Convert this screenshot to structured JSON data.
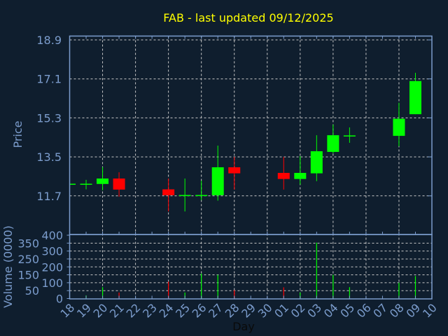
{
  "chart_data": {
    "type": "candlestick",
    "title": "FAB - last updated 09/12/2025",
    "xlabel": "Day",
    "ylabel": "Price",
    "volume_label": "Volume (0000)",
    "x_ticks": [
      "18",
      "19",
      "20",
      "21",
      "22",
      "23",
      "24",
      "25",
      "26",
      "27",
      "28",
      "29",
      "30",
      "01",
      "02",
      "03",
      "04",
      "05",
      "06",
      "07",
      "08",
      "09",
      "10"
    ],
    "y_ticks": [
      "18.9",
      "17.1",
      "15.3",
      "13.5",
      "11.7"
    ],
    "ylim": [
      10.0,
      19.1
    ],
    "volume_ticks": [
      "400",
      "350",
      "300",
      "250",
      "200",
      "150",
      "100",
      "50",
      "0"
    ],
    "volume_ylim": [
      0,
      400
    ],
    "grid": true,
    "colors": {
      "up": "#00ff00",
      "down": "#ff0000",
      "title": "#ffff00",
      "axis": "#7b9ccc",
      "background": "#0f1e2e",
      "grid": "#c8c8c8"
    },
    "candles": [
      {
        "day": "18",
        "open": 12.26,
        "high": 12.26,
        "low": 12.26,
        "close": 12.26,
        "volume": 0
      },
      {
        "day": "19",
        "open": 12.25,
        "high": 12.44,
        "low": 12.0,
        "close": 12.26,
        "volume": 20
      },
      {
        "day": "20",
        "open": 12.25,
        "high": 13.03,
        "low": 11.96,
        "close": 12.5,
        "volume": 72
      },
      {
        "day": "21",
        "open": 12.5,
        "high": 12.79,
        "low": 11.66,
        "close": 11.99,
        "volume": 38
      },
      {
        "day": "24",
        "open": 12.0,
        "high": 12.5,
        "low": 10.98,
        "close": 11.73,
        "volume": 107
      },
      {
        "day": "25",
        "open": 11.73,
        "high": 12.5,
        "low": 10.98,
        "close": 11.74,
        "volume": 38
      },
      {
        "day": "26",
        "open": 11.73,
        "high": 12.4,
        "low": 11.5,
        "close": 11.74,
        "volume": 158
      },
      {
        "day": "27",
        "open": 11.73,
        "high": 14.02,
        "low": 11.48,
        "close": 13.02,
        "volume": 150
      },
      {
        "day": "28",
        "open": 13.02,
        "high": 13.5,
        "low": 11.99,
        "close": 12.74,
        "volume": 53
      },
      {
        "day": "01",
        "open": 12.76,
        "high": 13.5,
        "low": 11.99,
        "close": 12.48,
        "volume": 71
      },
      {
        "day": "02",
        "open": 12.48,
        "high": 13.54,
        "low": 12.22,
        "close": 12.76,
        "volume": 38
      },
      {
        "day": "03",
        "open": 12.74,
        "high": 14.5,
        "low": 12.38,
        "close": 13.76,
        "volume": 353
      },
      {
        "day": "04",
        "open": 13.73,
        "high": 14.99,
        "low": 13.66,
        "close": 14.5,
        "volume": 150
      },
      {
        "day": "05",
        "open": 14.48,
        "high": 14.86,
        "low": 14.15,
        "close": 14.49,
        "volume": 72
      },
      {
        "day": "08",
        "open": 14.47,
        "high": 16.0,
        "low": 13.99,
        "close": 15.26,
        "volume": 100
      },
      {
        "day": "09",
        "open": 15.47,
        "high": 17.38,
        "low": 15.47,
        "close": 17.0,
        "volume": 142
      }
    ]
  }
}
